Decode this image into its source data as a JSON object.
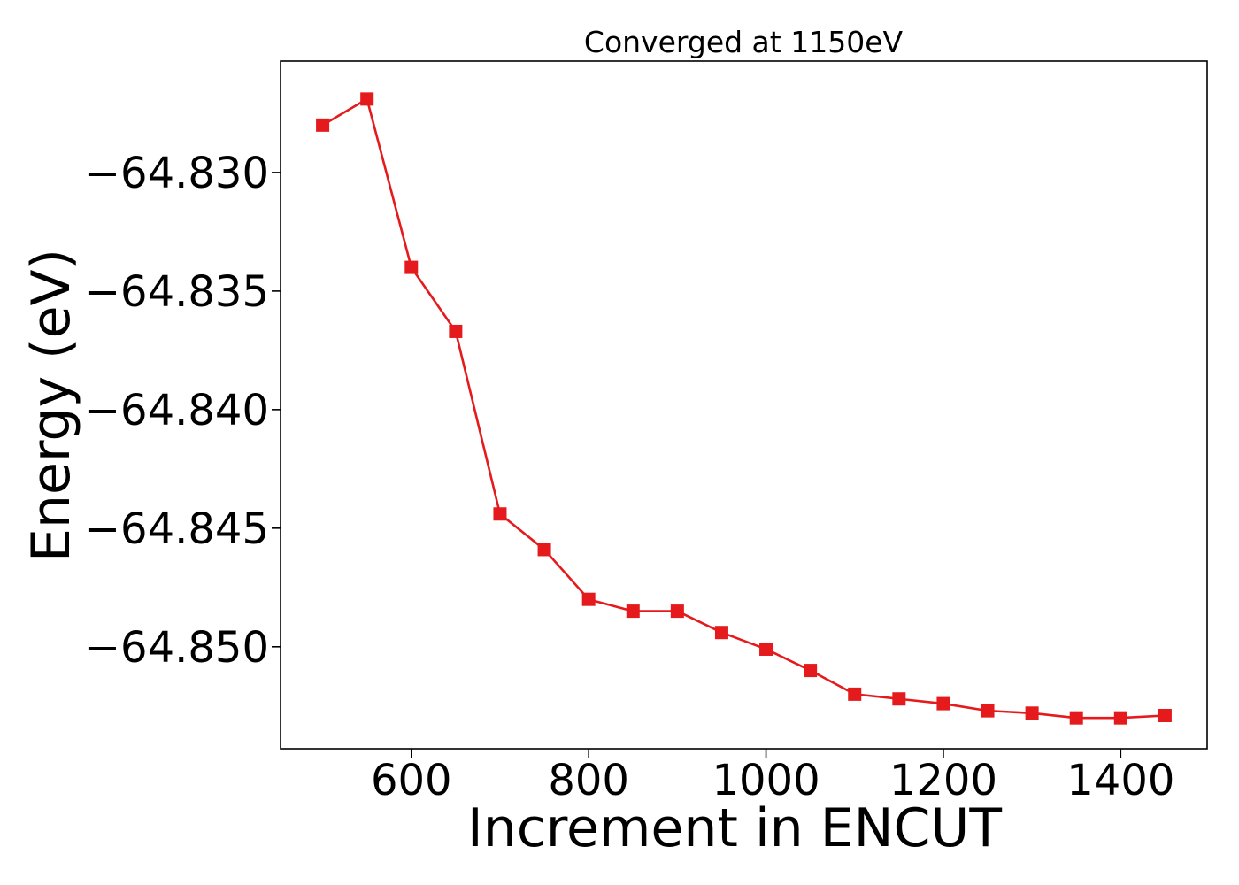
{
  "chart_data": {
    "type": "line",
    "title": "Converged at 1150eV",
    "xlabel": "Increment in ENCUT",
    "ylabel": "Energy (eV)",
    "xlim": [
      452.5,
      1497.5
    ],
    "ylim": [
      -64.8543,
      -64.8253
    ],
    "xticks": [
      600,
      800,
      1000,
      1200,
      1400
    ],
    "xtick_labels": [
      "600",
      "800",
      "1000",
      "1200",
      "1400"
    ],
    "yticks": [
      -64.83,
      -64.835,
      -64.84,
      -64.845,
      -64.85
    ],
    "ytick_labels": [
      "−64.830",
      "−64.835",
      "−64.840",
      "−64.845",
      "−64.850"
    ],
    "grid": false,
    "legend": "none",
    "series": [
      {
        "color": "#e41a1c",
        "marker": "square",
        "x": [
          500,
          550,
          600,
          650,
          700,
          750,
          800,
          850,
          900,
          950,
          1000,
          1050,
          1100,
          1150,
          1200,
          1250,
          1300,
          1350,
          1400,
          1450
        ],
        "y": [
          -64.828,
          -64.8269,
          -64.834,
          -64.8367,
          -64.8444,
          -64.8459,
          -64.848,
          -64.8485,
          -64.8485,
          -64.8494,
          -64.8501,
          -64.851,
          -64.852,
          -64.8522,
          -64.8524,
          -64.8527,
          -64.8528,
          -64.853,
          -64.853,
          -64.8529
        ]
      }
    ]
  }
}
